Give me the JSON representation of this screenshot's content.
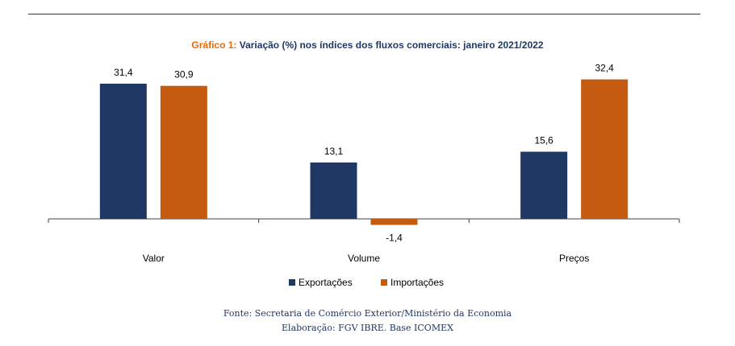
{
  "header": {
    "title_prefix": "Gráfico 1:",
    "title_text": "Variação (%) nos índices dos fluxos comerciais: janeiro 2021/2022"
  },
  "chart_data": {
    "type": "bar",
    "categories": [
      "Valor",
      "Volume",
      "Preços"
    ],
    "series": [
      {
        "name": "Exportações",
        "color": "#1f3864",
        "values": [
          31.4,
          13.1,
          15.6
        ],
        "labels": [
          "31,4",
          "13,1",
          "15,6"
        ]
      },
      {
        "name": "Importações",
        "color": "#c55a11",
        "values": [
          30.9,
          -1.4,
          32.4
        ],
        "labels": [
          "30,9",
          "-1,4",
          "32,4"
        ]
      }
    ],
    "title": "Variação (%) nos índices dos fluxos comerciais: janeiro 2021/2022",
    "xlabel": "",
    "ylabel": "",
    "ylim": [
      -5,
      35
    ],
    "grid": false,
    "legend": "bottom"
  },
  "footer": {
    "source": "Fonte: Secretaria de Comércio Exterior/Ministério da Economia",
    "elaboration": "Elaboração: FGV IBRE. Base ICOMEX"
  }
}
